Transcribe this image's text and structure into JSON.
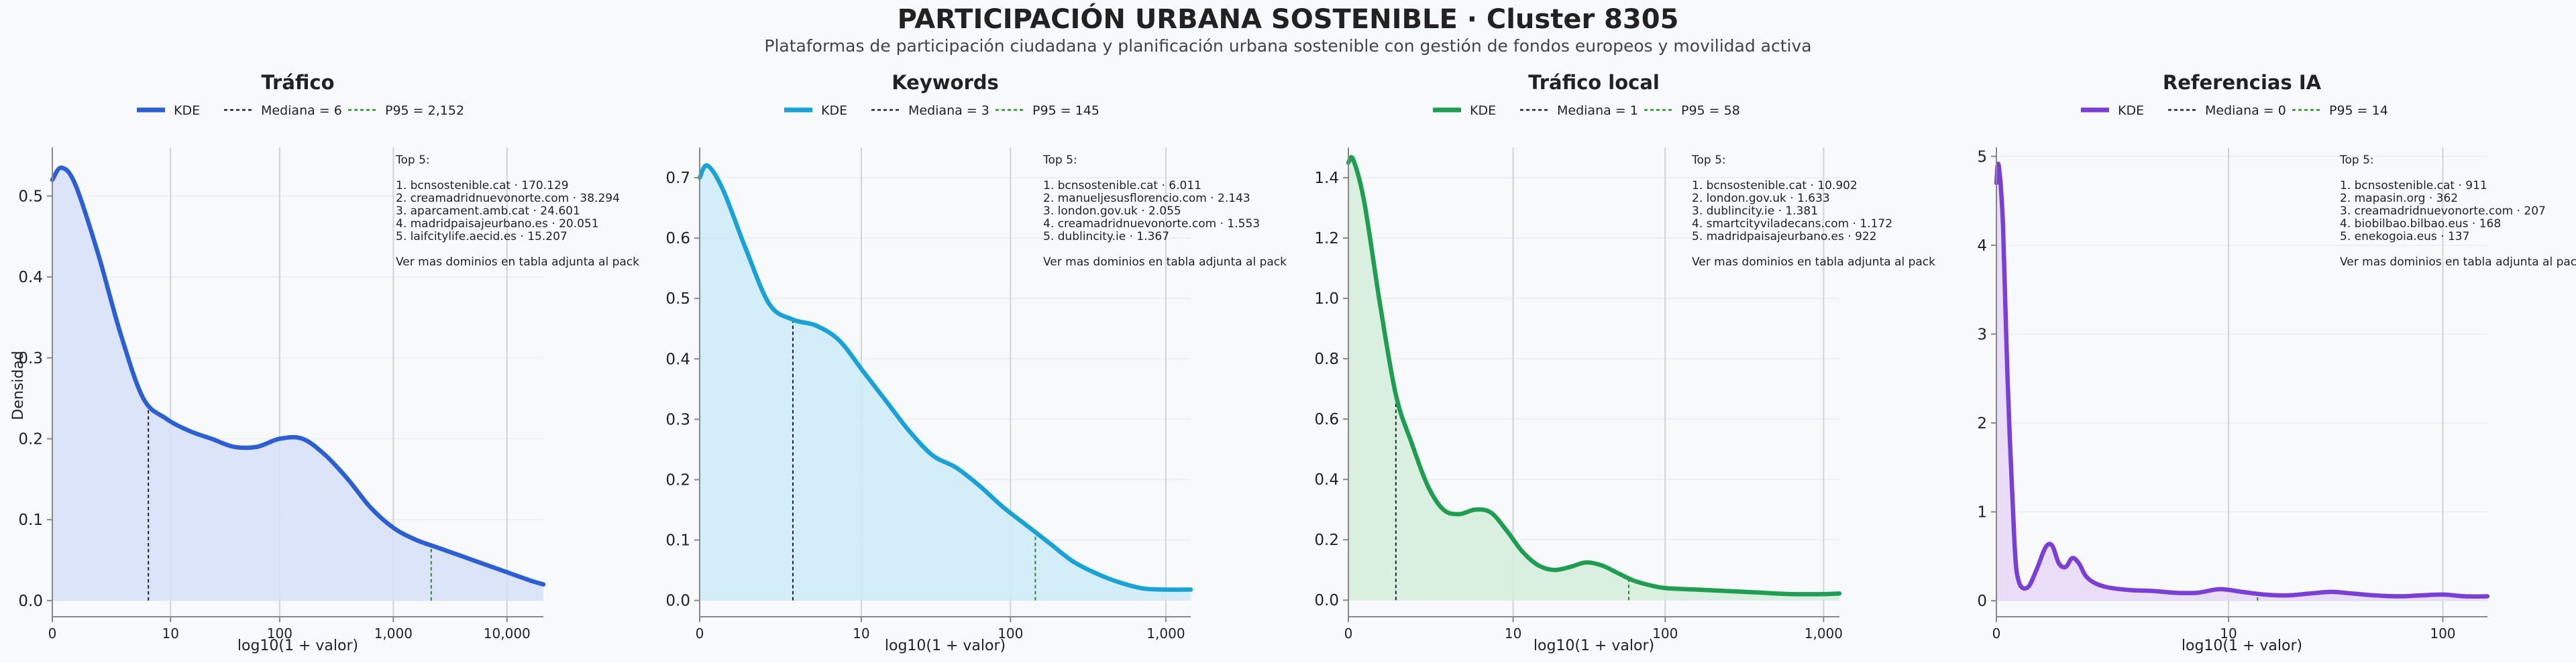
{
  "title": "PARTICIPACIÓN URBANA SOSTENIBLE · Cluster 8305",
  "subtitle": "Plataformas de participación ciudadana y planificación urbana sostenible con gestión de fondos europeos y movilidad activa",
  "ylabel_shared": "Densidad",
  "chart_data": [
    {
      "type": "area",
      "title": "Tráfico",
      "color": "#2a5fd6",
      "fill": "#d6e1f8",
      "xlabel": "log10(1 + valor)",
      "ylabel": "Densidad",
      "xlim": [
        0,
        4.32
      ],
      "ylim": [
        -0.02,
        0.56
      ],
      "xticks": [
        {
          "v": 0,
          "label": "0"
        },
        {
          "v": 1.04,
          "label": "10"
        },
        {
          "v": 2.0,
          "label": "100"
        },
        {
          "v": 3.0,
          "label": "1,000"
        },
        {
          "v": 4.0,
          "label": "10,000"
        }
      ],
      "yticks": [
        {
          "v": 0,
          "label": "0.0"
        },
        {
          "v": 0.1,
          "label": "0.1"
        },
        {
          "v": 0.2,
          "label": "0.2"
        },
        {
          "v": 0.3,
          "label": "0.3"
        },
        {
          "v": 0.4,
          "label": "0.4"
        },
        {
          "v": 0.5,
          "label": "0.5"
        }
      ],
      "legend": {
        "kde": "KDE",
        "median": "Mediana = 6",
        "p95": "P95 = 2,152"
      },
      "median_x": 0.845,
      "p95_x": 3.333,
      "x": [
        0,
        0.08,
        0.2,
        0.4,
        0.6,
        0.8,
        1.0,
        1.2,
        1.4,
        1.6,
        1.8,
        2.0,
        2.2,
        2.4,
        2.6,
        2.8,
        3.0,
        3.2,
        3.4,
        3.6,
        3.8,
        4.0,
        4.2,
        4.32
      ],
      "y": [
        0.52,
        0.535,
        0.515,
        0.43,
        0.33,
        0.25,
        0.225,
        0.21,
        0.2,
        0.19,
        0.19,
        0.2,
        0.2,
        0.18,
        0.15,
        0.115,
        0.09,
        0.075,
        0.065,
        0.055,
        0.045,
        0.035,
        0.025,
        0.02
      ],
      "top5_title": "Top 5:",
      "top5": [
        "1. bcnsostenible.cat · 170.129",
        "2. creamadridnuevonorte.com · 38.294",
        "3. aparcament.amb.cat · 24.601",
        "4. madridpaisajeurbano.es · 20.051",
        "5. laifcitylife.aecid.es · 15.207"
      ],
      "top5_note": "Ver mas dominios en tabla adjunta al pack"
    },
    {
      "type": "area",
      "title": "Keywords",
      "color": "#17a2d8",
      "fill": "#cdebf8",
      "xlabel": "log10(1 + valor)",
      "ylabel": "",
      "xlim": [
        0,
        3.16
      ],
      "ylim": [
        -0.027,
        0.75
      ],
      "xticks": [
        {
          "v": 0,
          "label": "0"
        },
        {
          "v": 1.04,
          "label": "10"
        },
        {
          "v": 2.0,
          "label": "100"
        },
        {
          "v": 3.0,
          "label": "1,000"
        }
      ],
      "yticks": [
        {
          "v": 0,
          "label": "0.0"
        },
        {
          "v": 0.1,
          "label": "0.1"
        },
        {
          "v": 0.2,
          "label": "0.2"
        },
        {
          "v": 0.3,
          "label": "0.3"
        },
        {
          "v": 0.4,
          "label": "0.4"
        },
        {
          "v": 0.5,
          "label": "0.5"
        },
        {
          "v": 0.6,
          "label": "0.6"
        },
        {
          "v": 0.7,
          "label": "0.7"
        }
      ],
      "legend": {
        "kde": "KDE",
        "median": "Mediana = 3",
        "p95": "P95 = 145"
      },
      "median_x": 0.6,
      "p95_x": 2.16,
      "x": [
        0,
        0.05,
        0.15,
        0.3,
        0.45,
        0.6,
        0.75,
        0.9,
        1.05,
        1.2,
        1.35,
        1.5,
        1.65,
        1.8,
        1.95,
        2.1,
        2.25,
        2.4,
        2.55,
        2.7,
        2.85,
        3.0,
        3.16
      ],
      "y": [
        0.7,
        0.72,
        0.68,
        0.58,
        0.49,
        0.465,
        0.455,
        0.43,
        0.38,
        0.33,
        0.28,
        0.24,
        0.22,
        0.19,
        0.155,
        0.125,
        0.095,
        0.065,
        0.045,
        0.03,
        0.02,
        0.018,
        0.018
      ],
      "top5_title": "Top 5:",
      "top5": [
        "1. bcnsostenible.cat · 6.011",
        "2. manueljesusflorencio.com · 2.143",
        "3. london.gov.uk · 2.055",
        "4. creamadridnuevonorte.com · 1.553",
        "5. dublincity.ie · 1.367"
      ],
      "top5_note": "Ver mas dominios en tabla adjunta al pack"
    },
    {
      "type": "area",
      "title": "Tráfico local",
      "color": "#1e9e50",
      "fill": "#d4eedc",
      "xlabel": "log10(1 + valor)",
      "ylabel": "",
      "xlim": [
        0,
        3.1
      ],
      "ylim": [
        -0.055,
        1.5
      ],
      "xticks": [
        {
          "v": 0,
          "label": "0"
        },
        {
          "v": 1.04,
          "label": "10"
        },
        {
          "v": 2.0,
          "label": "100"
        },
        {
          "v": 3.0,
          "label": "1,000"
        }
      ],
      "yticks": [
        {
          "v": 0,
          "label": "0.0"
        },
        {
          "v": 0.2,
          "label": "0.2"
        },
        {
          "v": 0.4,
          "label": "0.4"
        },
        {
          "v": 0.6,
          "label": "0.6"
        },
        {
          "v": 0.8,
          "label": "0.8"
        },
        {
          "v": 1.0,
          "label": "1.0"
        },
        {
          "v": 1.2,
          "label": "1.2"
        },
        {
          "v": 1.4,
          "label": "1.4"
        }
      ],
      "legend": {
        "kde": "KDE",
        "median": "Mediana = 1",
        "p95": "P95 = 58"
      },
      "median_x": 0.3,
      "p95_x": 1.77,
      "x": [
        0,
        0.03,
        0.1,
        0.2,
        0.3,
        0.4,
        0.5,
        0.6,
        0.7,
        0.8,
        0.9,
        1.0,
        1.1,
        1.2,
        1.3,
        1.4,
        1.5,
        1.6,
        1.7,
        1.8,
        1.9,
        2.0,
        2.2,
        2.4,
        2.6,
        2.8,
        3.0,
        3.1
      ],
      "y": [
        1.45,
        1.46,
        1.32,
        0.98,
        0.68,
        0.52,
        0.38,
        0.3,
        0.285,
        0.3,
        0.29,
        0.23,
        0.16,
        0.115,
        0.1,
        0.11,
        0.125,
        0.115,
        0.09,
        0.065,
        0.05,
        0.04,
        0.035,
        0.03,
        0.025,
        0.02,
        0.02,
        0.022
      ],
      "top5_title": "Top 5:",
      "top5": [
        "1. bcnsostenible.cat · 10.902",
        "2. london.gov.uk · 1.633",
        "3. dublincity.ie · 1.381",
        "4. smartcityviladecans.com · 1.172",
        "5. madridpaisajeurbano.es · 922"
      ],
      "top5_note": "Ver mas dominios en tabla adjunta al pack"
    },
    {
      "type": "area",
      "title": "Referencias IA",
      "color": "#7a3fd9",
      "fill": "#e6d8f7",
      "xlabel": "log10(1 + valor)",
      "ylabel": "",
      "xlim": [
        0,
        2.2
      ],
      "ylim": [
        -0.18,
        5.1
      ],
      "xticks": [
        {
          "v": 0,
          "label": "0"
        },
        {
          "v": 1.04,
          "label": "10"
        },
        {
          "v": 2.0,
          "label": "100"
        }
      ],
      "yticks": [
        {
          "v": 0,
          "label": "0"
        },
        {
          "v": 1,
          "label": "1"
        },
        {
          "v": 2,
          "label": "2"
        },
        {
          "v": 3,
          "label": "3"
        },
        {
          "v": 4,
          "label": "4"
        },
        {
          "v": 5,
          "label": "5"
        }
      ],
      "legend": {
        "kde": "KDE",
        "median": "Mediana = 0",
        "p95": "P95 = 14"
      },
      "median_x": 0,
      "p95_x": 1.17,
      "x": [
        0,
        0.01,
        0.03,
        0.05,
        0.08,
        0.1,
        0.14,
        0.18,
        0.22,
        0.25,
        0.28,
        0.31,
        0.34,
        0.37,
        0.4,
        0.44,
        0.5,
        0.6,
        0.7,
        0.8,
        0.9,
        1.0,
        1.1,
        1.2,
        1.3,
        1.4,
        1.5,
        1.6,
        1.7,
        1.8,
        1.9,
        2.0,
        2.1,
        2.2
      ],
      "y": [
        4.7,
        4.9,
        4.2,
        2.5,
        0.7,
        0.22,
        0.15,
        0.35,
        0.6,
        0.62,
        0.42,
        0.38,
        0.48,
        0.42,
        0.28,
        0.2,
        0.15,
        0.12,
        0.11,
        0.09,
        0.09,
        0.13,
        0.1,
        0.07,
        0.06,
        0.08,
        0.1,
        0.08,
        0.06,
        0.05,
        0.06,
        0.07,
        0.05,
        0.05
      ],
      "top5_title": "Top 5:",
      "top5": [
        "1. bcnsostenible.cat · 911",
        "2. mapasin.org · 362",
        "3. creamadridnuevonorte.com · 207",
        "4. biobilbao.bilbao.eus · 168",
        "5. enekogoia.eus · 137"
      ],
      "top5_note": "Ver mas dominios en tabla adjunta al pack"
    }
  ]
}
